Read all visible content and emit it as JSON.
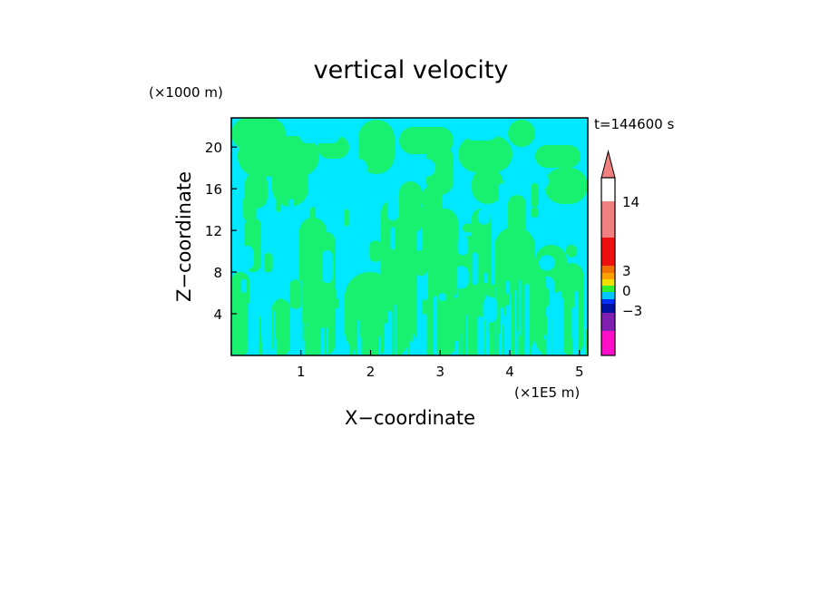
{
  "chart_data": {
    "type": "heatmap",
    "title": "vertical velocity",
    "time_label": "t=144600 s",
    "xlabel": "X−coordinate",
    "ylabel": "Z−coordinate",
    "x_unit": "(×1E5 m)",
    "y_unit": "(×1000 m)",
    "x_ticks": [
      {
        "value": 1,
        "label": "1"
      },
      {
        "value": 2,
        "label": "2"
      },
      {
        "value": 3,
        "label": "3"
      },
      {
        "value": 4,
        "label": "4"
      },
      {
        "value": 5,
        "label": "5"
      }
    ],
    "y_ticks": [
      {
        "value": 4,
        "label": "4"
      },
      {
        "value": 8,
        "label": "8"
      },
      {
        "value": 12,
        "label": "12"
      },
      {
        "value": 16,
        "label": "16"
      },
      {
        "value": 20,
        "label": "20"
      }
    ],
    "xlim": [
      0,
      5.12
    ],
    "ylim": [
      0,
      22.8
    ],
    "grid": false,
    "field_classes": [
      {
        "name": "weak downward",
        "color": "#00e8ff"
      },
      {
        "name": "weak upward",
        "color": "#18f070"
      }
    ],
    "colorbar": {
      "levels": [
        {
          "color": "#ff10c8"
        },
        {
          "color": "#8020b0"
        },
        {
          "color": "#0010a0"
        },
        {
          "color": "#0030ff"
        },
        {
          "color": "#00c8ff"
        },
        {
          "color": "#30f030"
        },
        {
          "color": "#f0e000"
        },
        {
          "color": "#ffa000"
        },
        {
          "color": "#f07000"
        },
        {
          "color": "#ee1010"
        },
        {
          "color": "#f08080"
        }
      ],
      "overflow_color": "#f08080",
      "tick_labels": [
        "14",
        "3",
        "0",
        "−3"
      ]
    }
  }
}
